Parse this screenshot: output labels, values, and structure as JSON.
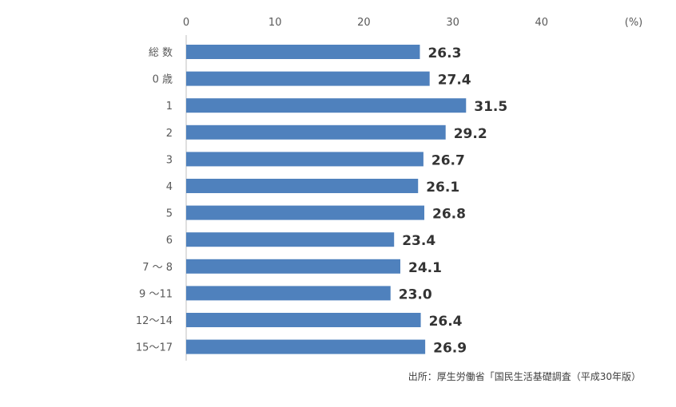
{
  "chart_data": {
    "type": "bar",
    "orientation": "horizontal",
    "categories": [
      "総 数",
      "0 歳",
      "1",
      "2",
      "3",
      "4",
      "5",
      "6",
      "7 ～ 8",
      "9 ～11",
      "12～14",
      "15～17"
    ],
    "values": [
      26.3,
      27.4,
      31.5,
      29.2,
      26.7,
      26.1,
      26.8,
      23.4,
      24.1,
      23.0,
      26.4,
      26.9
    ],
    "value_labels": [
      "26.3",
      "27.4",
      "31.5",
      "29.2",
      "26.7",
      "26.1",
      "26.8",
      "23.4",
      "24.1",
      "23.0",
      "26.4",
      "26.9"
    ],
    "xticks": [
      0,
      10,
      20,
      30,
      40
    ],
    "xlim": [
      0,
      50
    ],
    "unit": "(%)",
    "grid": false,
    "bar_color": "#4f81bd",
    "axis_color": "#bfbfbf",
    "source": "出所：厚生労働省「国民生活基礎調査（平成30年版）"
  }
}
